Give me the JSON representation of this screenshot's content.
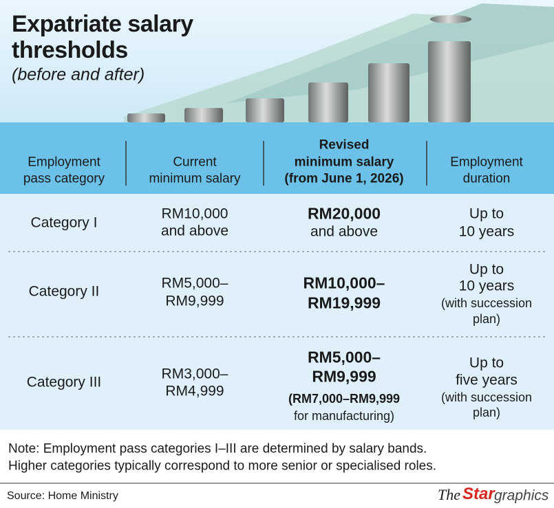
{
  "header": {
    "title_lines": [
      "Expatriate salary",
      "thresholds"
    ],
    "subtitle": "(before and after)"
  },
  "table": {
    "columns": [
      [
        "Employment",
        "pass category"
      ],
      [
        "Current",
        "minimum salary"
      ],
      [
        "Revised",
        "minimum salary",
        "(from June 1, 2026)"
      ],
      [
        "Employment",
        "duration"
      ]
    ],
    "rows": [
      [
        [
          "Category I"
        ],
        [
          "RM10,000",
          "and above"
        ],
        [
          "RM20,000",
          "and above"
        ],
        [
          "Up to",
          "10 years"
        ]
      ],
      [
        [
          "Category II"
        ],
        [
          "RM5,000–",
          "RM9,999"
        ],
        [
          "RM10,000–",
          "RM19,999"
        ],
        [
          "Up to",
          "10 years",
          "(with succession",
          "plan)"
        ]
      ],
      [
        [
          "Category III"
        ],
        [
          "RM3,000–",
          "RM4,999"
        ],
        [
          "RM5,000–",
          "RM9,999",
          "(RM7,000–RM9,999",
          "for manufacturing)"
        ],
        [
          "Up to",
          "five years",
          "(with succession",
          "plan)"
        ]
      ]
    ]
  },
  "note": [
    "Note: Employment pass categories I–III are determined by salary bands.",
    "Higher categories typically correspond to more senior or specialised roles."
  ],
  "source": "Source: Home Ministry",
  "logo": [
    "The",
    "Star",
    "graphics"
  ]
}
